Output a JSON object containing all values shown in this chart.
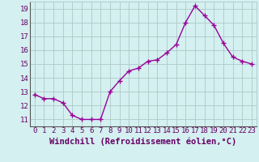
{
  "x": [
    0,
    1,
    2,
    3,
    4,
    5,
    6,
    7,
    8,
    9,
    10,
    11,
    12,
    13,
    14,
    15,
    16,
    17,
    18,
    19,
    20,
    21,
    22,
    23
  ],
  "y": [
    12.8,
    12.5,
    12.5,
    12.2,
    11.3,
    11.0,
    11.0,
    11.0,
    13.0,
    13.8,
    14.5,
    14.7,
    15.2,
    15.3,
    15.8,
    16.4,
    18.0,
    19.2,
    18.5,
    17.8,
    16.5,
    15.5,
    15.2,
    15.0
  ],
  "line_color": "#990099",
  "marker": "+",
  "marker_size": 4,
  "marker_linewidth": 1.0,
  "bg_color": "#d4f0f0",
  "grid_color": "#b0c8c8",
  "xlabel": "Windchill (Refroidissement éolien,°C)",
  "xlabel_color": "#660066",
  "tick_color": "#660066",
  "ylim": [
    10.5,
    19.5
  ],
  "xlim": [
    -0.5,
    23.5
  ],
  "yticks": [
    11,
    12,
    13,
    14,
    15,
    16,
    17,
    18,
    19
  ],
  "xticks": [
    0,
    1,
    2,
    3,
    4,
    5,
    6,
    7,
    8,
    9,
    10,
    11,
    12,
    13,
    14,
    15,
    16,
    17,
    18,
    19,
    20,
    21,
    22,
    23
  ],
  "xtick_labels": [
    "0",
    "1",
    "2",
    "3",
    "4",
    "5",
    "6",
    "7",
    "8",
    "9",
    "10",
    "11",
    "12",
    "13",
    "14",
    "15",
    "16",
    "17",
    "18",
    "19",
    "20",
    "21",
    "22",
    "23"
  ],
  "line_width": 1.0,
  "tick_fontsize": 6.5,
  "xlabel_fontsize": 7.5
}
